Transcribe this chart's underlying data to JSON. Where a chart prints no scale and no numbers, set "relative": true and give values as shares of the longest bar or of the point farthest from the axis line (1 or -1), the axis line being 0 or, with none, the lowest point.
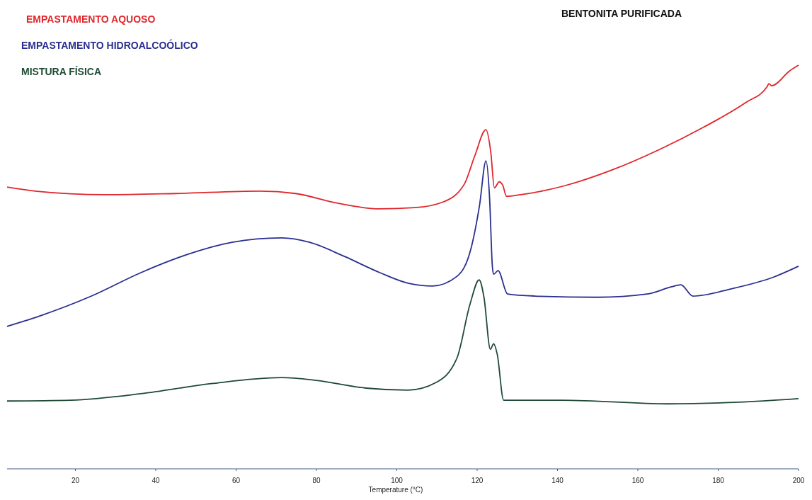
{
  "chart_data": {
    "type": "line",
    "title": "BENTONITA PURIFICADA",
    "xlabel": "Temperature (°C)",
    "relative": true,
    "legend": "top left",
    "marker": "none",
    "line_style": "solid",
    "grid": false,
    "xlim": [
      3,
      200
    ],
    "xticks": [
      20,
      40,
      60,
      80,
      100,
      120,
      140,
      160,
      180,
      200
    ],
    "series": [
      {
        "name": "EMPASTAMENTO AQUOSO",
        "color": "#e0262b",
        "x": [
          3,
          10,
          27.5,
          45,
          66,
          74.8,
          85.3,
          95.8,
          104.5,
          111.5,
          116.8,
          119.4,
          122.2,
          123.4,
          124.3,
          125.5,
          126.4,
          127.3,
          130.8,
          141.3,
          153.5,
          165.8,
          176.3,
          186.8,
          192.2,
          192.6,
          193.3,
          197.8,
          200
        ],
        "values": [
          0.698,
          0.688,
          0.679,
          0.682,
          0.688,
          0.682,
          0.658,
          0.644,
          0.647,
          0.661,
          0.705,
          0.775,
          0.84,
          0.784,
          0.696,
          0.711,
          0.702,
          0.675,
          0.679,
          0.7,
          0.74,
          0.793,
          0.846,
          0.907,
          0.947,
          0.954,
          0.949,
          0.986,
          1.0
        ]
      },
      {
        "name": "EMPASTAMENTO HIDROALCOÓLICO",
        "color": "#2a2f8f",
        "x": [
          3,
          11.8,
          24,
          36.3,
          48.5,
          59,
          71.3,
          78.3,
          87,
          95.8,
          102.8,
          108.9,
          115,
          118.5,
          120.6,
          122.2,
          123.1,
          123.8,
          124.1,
          125.2,
          127.6,
          134.3,
          150,
          162.3,
          168.4,
          170.7,
          173.7,
          183.3,
          193.8,
          200
        ],
        "values": [
          0.353,
          0.381,
          0.428,
          0.486,
          0.533,
          0.561,
          0.572,
          0.561,
          0.526,
          0.486,
          0.46,
          0.453,
          0.477,
          0.547,
          0.653,
          0.763,
          0.67,
          0.5,
          0.482,
          0.491,
          0.433,
          0.428,
          0.425,
          0.433,
          0.451,
          0.456,
          0.428,
          0.446,
          0.475,
          0.502
        ]
      },
      {
        "name": "MISTURA FÍSICA",
        "color": "#1f4a35",
        "x": [
          3,
          18.8,
          36.3,
          53.8,
          71.3,
          80,
          92.3,
          102.8,
          109.8,
          115,
          118.2,
          120.5,
          121.7,
          123.3,
          124.1,
          125,
          126.6,
          141.3,
          167.5,
          185,
          200
        ],
        "values": [
          0.168,
          0.17,
          0.186,
          0.211,
          0.226,
          0.219,
          0.2,
          0.195,
          0.214,
          0.275,
          0.407,
          0.468,
          0.425,
          0.296,
          0.31,
          0.284,
          0.17,
          0.17,
          0.161,
          0.165,
          0.174
        ]
      }
    ]
  }
}
